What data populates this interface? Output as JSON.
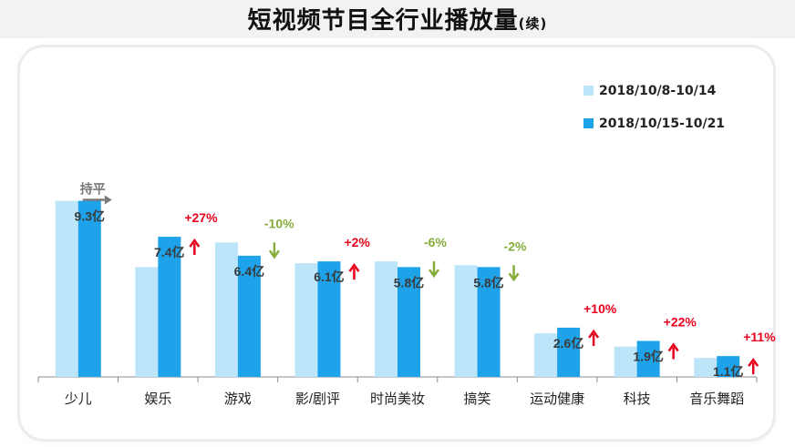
{
  "title": {
    "main": "短视频节目全行业播放量",
    "suffix": "(续)"
  },
  "colors": {
    "series1": "#bde5fa",
    "series2": "#1ea3ea",
    "up": "#e8001c",
    "down": "#86ad3c",
    "flat": "#7a7a7a",
    "axis": "#8c8c8c"
  },
  "chart_data": {
    "type": "bar",
    "title": "短视频节目全行业播放量(续)",
    "xlabel": "",
    "ylabel": "",
    "unit": "亿",
    "legend_position": "top-right",
    "categories": [
      "少儿",
      "娱乐",
      "游戏",
      "影/剧评",
      "时尚美妆",
      "搞笑",
      "运动健康",
      "科技",
      "音乐舞蹈"
    ],
    "series": [
      {
        "name": "2018/10/8-10/14",
        "values": [
          9.3,
          5.8,
          7.1,
          6.0,
          6.1,
          5.9,
          2.3,
          1.6,
          1.0
        ]
      },
      {
        "name": "2018/10/15-10/21",
        "values": [
          9.3,
          7.4,
          6.4,
          6.1,
          5.8,
          5.8,
          2.6,
          1.9,
          1.1
        ]
      }
    ],
    "data_labels": [
      "9.3亿",
      "7.4亿",
      "6.4亿",
      "6.1亿",
      "5.8亿",
      "5.8亿",
      "2.6亿",
      "1.9亿",
      "1.1亿"
    ],
    "changes": [
      {
        "text": "持平",
        "direction": "flat"
      },
      {
        "text": "+27%",
        "direction": "up"
      },
      {
        "text": "-10%",
        "direction": "down"
      },
      {
        "text": "+2%",
        "direction": "up"
      },
      {
        "text": "-6%",
        "direction": "down"
      },
      {
        "text": "-2%",
        "direction": "down"
      },
      {
        "text": "+10%",
        "direction": "up"
      },
      {
        "text": "+22%",
        "direction": "up"
      },
      {
        "text": "+11%",
        "direction": "up"
      }
    ],
    "ylim": [
      0,
      10
    ],
    "grid": false
  }
}
